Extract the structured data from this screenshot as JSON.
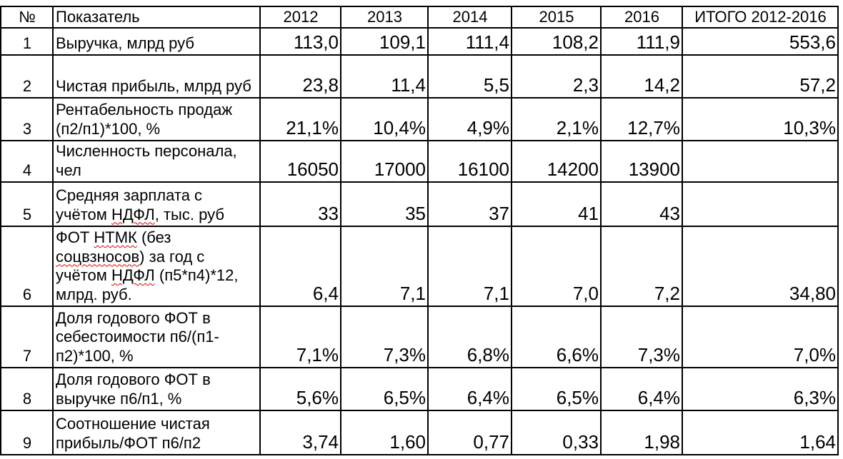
{
  "header": {
    "num": "№",
    "name": "Показатель",
    "years": [
      "2012",
      "2013",
      "2014",
      "2015",
      "2016"
    ],
    "total": "ИТОГО 2012-2016"
  },
  "rows": [
    {
      "n": "1",
      "name": "Выручка, млрд руб",
      "v": [
        "113,0",
        "109,1",
        "111,4",
        "108,2",
        "111,9"
      ],
      "total": "553,6"
    },
    {
      "n": "2",
      "name": "Чистая прибыль, млрд руб",
      "v": [
        "23,8",
        "11,4",
        "5,5",
        "2,3",
        "14,2"
      ],
      "total": "57,2"
    },
    {
      "n": "3",
      "name": "Рентабельность продаж (п2/п1)*100, %",
      "v": [
        "21,1%",
        "10,4%",
        "4,9%",
        "2,1%",
        "12,7%"
      ],
      "total": "10,3%"
    },
    {
      "n": "4",
      "name": "Численность персонала, чел",
      "v": [
        "16050",
        "17000",
        "16100",
        "14200",
        "13900"
      ],
      "total": ""
    },
    {
      "n": "5",
      "name": "Средняя зарплата с учётом НДФЛ, тыс. руб",
      "v": [
        "33",
        "35",
        "37",
        "41",
        "43"
      ],
      "total": ""
    },
    {
      "n": "6",
      "name": "ФОТ НТМК (без соцвзносов) за год с учётом НДФЛ (п5*п4)*12, млрд. руб.",
      "v": [
        "6,4",
        "7,1",
        "7,1",
        "7,0",
        "7,2"
      ],
      "total": "34,80"
    },
    {
      "n": "7",
      "name": "Доля годового ФОТ в себестоимости п6/(п1-п2)*100, %",
      "v": [
        "7,1%",
        "7,3%",
        "6,8%",
        "6,6%",
        "7,3%"
      ],
      "total": "7,0%"
    },
    {
      "n": "8",
      "name": "Доля годового ФОТ в выручке п6/п1, %",
      "v": [
        "5,6%",
        "6,5%",
        "6,4%",
        "6,5%",
        "6,4%"
      ],
      "total": "6,3%"
    },
    {
      "n": "9",
      "name": "Соотношение чистая прибыль/ФОТ п6/п2",
      "v": [
        "3,74",
        "1,60",
        "0,77",
        "0,33",
        "1,98"
      ],
      "total": "1,64"
    }
  ]
}
